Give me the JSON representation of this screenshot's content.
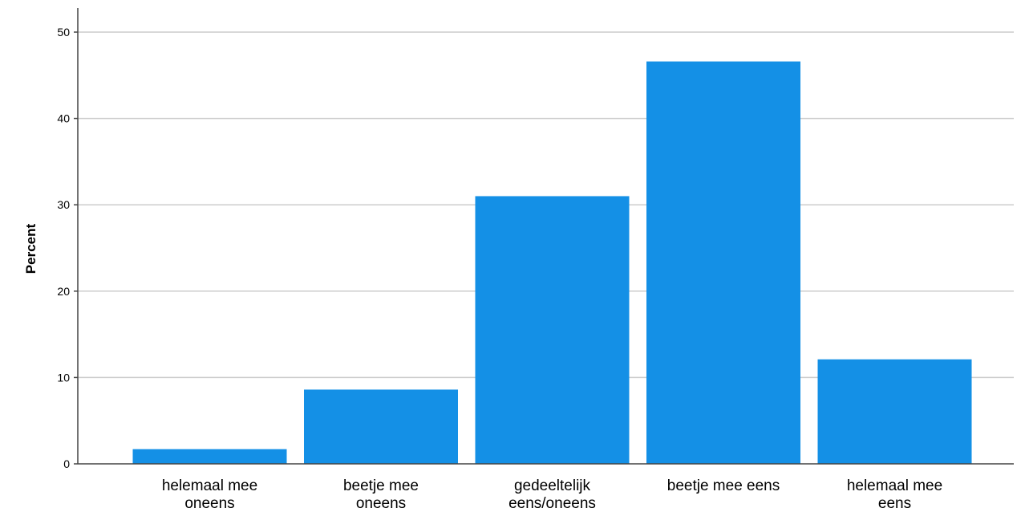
{
  "chart_data": {
    "type": "bar",
    "title": "",
    "xlabel": "",
    "ylabel": "Percent",
    "categories": [
      [
        "helemaal mee",
        "oneens"
      ],
      [
        "beetje mee",
        "oneens"
      ],
      [
        "gedeeltelijk",
        "eens/oneens"
      ],
      [
        "beetje mee eens"
      ],
      [
        "helemaal mee",
        "eens"
      ]
    ],
    "values": [
      1.7,
      8.6,
      31.0,
      46.6,
      12.1
    ],
    "ylim": [
      0,
      53
    ],
    "yticks": [
      0,
      10,
      20,
      30,
      40,
      50
    ],
    "grid": true,
    "legend": "none",
    "bar_color": "#1490e6",
    "grid_color": "#cccccc",
    "axis_color": "#444444"
  }
}
